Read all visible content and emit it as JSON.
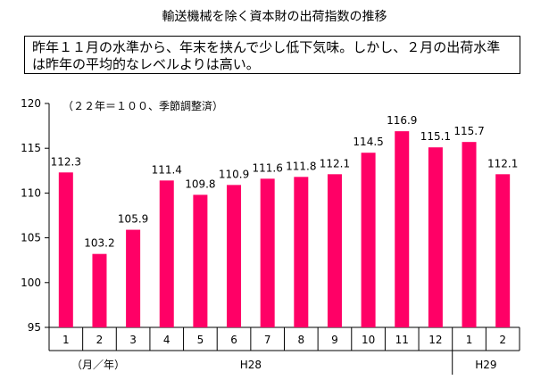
{
  "title": "輸送機械を除く資本財の出荷指数の推移",
  "note": "昨年１１月の水準から、年末を挟んで少し低下気味。しかし、２月の出荷水準は昨年の平均的なレベルよりは高い。",
  "chart_data": {
    "type": "bar",
    "unit_note": "（２２年＝１００、季節調整済）",
    "categories": [
      "1",
      "2",
      "3",
      "4",
      "5",
      "6",
      "7",
      "8",
      "9",
      "10",
      "11",
      "12",
      "1",
      "2"
    ],
    "values": [
      112.3,
      103.2,
      105.9,
      111.4,
      109.8,
      110.9,
      111.6,
      111.8,
      112.1,
      114.5,
      116.9,
      115.1,
      115.7,
      112.1
    ],
    "year_groups": [
      {
        "label": "H28",
        "count": 12
      },
      {
        "label": "H29",
        "count": 2
      }
    ],
    "xlabel": "（月／年）",
    "ylim": [
      95,
      120
    ],
    "yticks": [
      95,
      100,
      105,
      110,
      115,
      120
    ],
    "bar_color": "#ff0066",
    "grid": false,
    "data_labels": true
  }
}
